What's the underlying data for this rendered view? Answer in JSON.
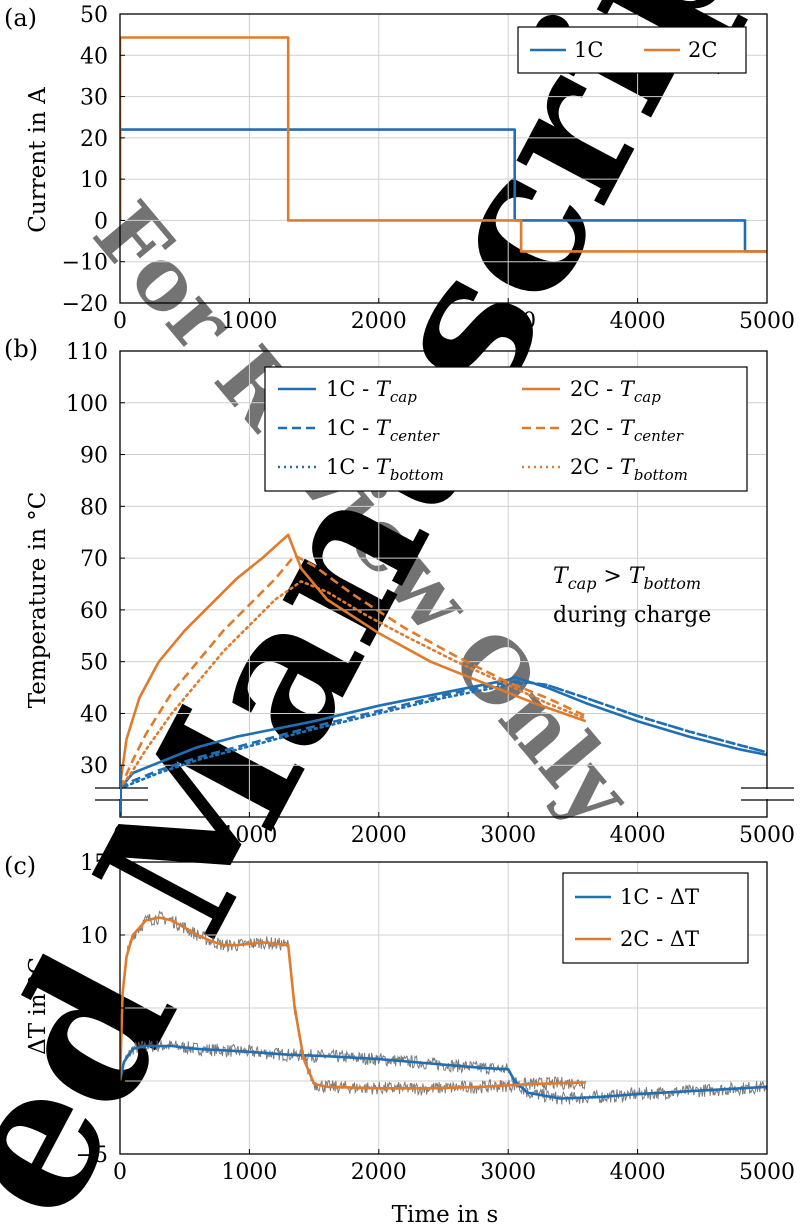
{
  "watermark": {
    "text_a": "For Review Only",
    "text_b": "ed Manuscript",
    "color_a": "#7fd3f5",
    "color_b": "#9a9a9a"
  },
  "colors": {
    "c1": "#1f6fb5",
    "c2": "#e07b2b",
    "noise": "#666666",
    "grid": "#d0d0d0"
  },
  "chart_data": [
    {
      "panel": "(a)",
      "type": "line",
      "xlabel": "",
      "ylabel": "Current in A",
      "xlim": [
        0,
        5000
      ],
      "ylim": [
        -20,
        50
      ],
      "xticks": [
        0,
        1000,
        2000,
        3000,
        4000,
        5000
      ],
      "yticks": [
        -20,
        -10,
        0,
        10,
        20,
        30,
        40,
        50
      ],
      "grid": true,
      "legend_position": "top-right",
      "series": [
        {
          "name": "1C",
          "style": "solid",
          "color": "#1f6fb5",
          "x": [
            0,
            0,
            3050,
            3050,
            4830,
            4830,
            5000
          ],
          "y": [
            0,
            22,
            22,
            0,
            0,
            -7.5,
            -7.5
          ]
        },
        {
          "name": "2C",
          "style": "solid",
          "color": "#e07b2b",
          "x": [
            0,
            0,
            1300,
            1300,
            3100,
            3100,
            5000
          ],
          "y": [
            0,
            44.3,
            44.3,
            0,
            0,
            -7.5,
            -7.5
          ]
        }
      ]
    },
    {
      "panel": "(b)",
      "type": "line",
      "xlabel": "",
      "ylabel": "Temperature in °C",
      "xlim": [
        0,
        5000
      ],
      "ylim": [
        20,
        110
      ],
      "xticks": [
        0,
        1000,
        2000,
        3000,
        4000,
        5000
      ],
      "yticks": [
        30,
        40,
        50,
        60,
        70,
        80,
        90,
        100,
        110
      ],
      "axis_break": true,
      "grid": true,
      "legend_position": "top-right",
      "annotation": {
        "line1_main": "T",
        "line1_sub1": "cap",
        "line1_op": " > T",
        "line1_sub2": "bottom",
        "line2": "during charge"
      },
      "series": [
        {
          "name": "1C - T_cap",
          "label_main": "1C - T",
          "label_sub": "cap",
          "style": "solid",
          "color": "#1f6fb5",
          "x": [
            0,
            100,
            300,
            600,
            900,
            1200,
            1500,
            2000,
            2500,
            3000,
            3050,
            3300,
            3600,
            4000,
            4400,
            4800,
            5000
          ],
          "y": [
            25.5,
            28.5,
            30.5,
            33.5,
            35.5,
            37,
            38.5,
            41.5,
            44,
            46.5,
            47,
            45,
            42,
            38.5,
            35.5,
            33,
            32
          ]
        },
        {
          "name": "1C - T_center",
          "label_main": "1C - T",
          "label_sub": "center",
          "style": "dashed",
          "color": "#1f6fb5",
          "x": [
            0,
            100,
            300,
            600,
            900,
            1200,
            1500,
            2000,
            2500,
            3000,
            3100,
            3300,
            3600,
            4000,
            4400,
            4800,
            5000
          ],
          "y": [
            25.5,
            27,
            29,
            31.5,
            33.5,
            35.5,
            37.5,
            40.5,
            43.5,
            46,
            46.2,
            45.5,
            43,
            39.5,
            36.5,
            33.8,
            32.5
          ]
        },
        {
          "name": "1C - T_bottom",
          "label_main": "1C - T",
          "label_sub": "bottom",
          "style": "dotted",
          "color": "#1f6fb5",
          "x": [
            0,
            100,
            300,
            600,
            900,
            1200,
            1500,
            2000,
            2500,
            3000,
            3150,
            3300,
            3600,
            4000,
            4400,
            4800,
            5000
          ],
          "y": [
            25.5,
            26.5,
            28.5,
            31,
            33,
            35,
            37,
            40,
            43,
            45.5,
            46,
            45.5,
            43,
            39.5,
            36.5,
            33.8,
            32.5
          ]
        },
        {
          "name": "2C - T_cap",
          "label_main": "2C - T",
          "label_sub": "cap",
          "style": "solid",
          "color": "#e07b2b",
          "x": [
            0,
            50,
            150,
            300,
            500,
            700,
            900,
            1100,
            1300,
            1400,
            1600,
            2000,
            2400,
            2800,
            3200,
            3600
          ],
          "y": [
            26,
            35,
            43,
            50,
            56,
            61,
            66,
            70,
            74.5,
            68,
            62,
            55.5,
            50,
            46,
            42,
            38.5
          ]
        },
        {
          "name": "2C - T_center",
          "label_main": "2C - T",
          "label_sub": "center",
          "style": "dashed",
          "color": "#e07b2b",
          "x": [
            0,
            100,
            200,
            400,
            600,
            800,
            1000,
            1200,
            1350,
            1500,
            1800,
            2200,
            2600,
            3000,
            3300,
            3600
          ],
          "y": [
            25.5,
            31,
            36,
            44,
            50,
            56,
            61,
            66,
            70.5,
            68.5,
            63,
            56.5,
            51,
            46,
            43,
            39.5
          ]
        },
        {
          "name": "2C - T_bottom",
          "label_main": "2C - T",
          "label_sub": "bottom",
          "style": "dotted",
          "color": "#e07b2b",
          "x": [
            0,
            100,
            200,
            400,
            600,
            800,
            1000,
            1200,
            1400,
            1600,
            1900,
            2200,
            2600,
            3000,
            3300,
            3600
          ],
          "y": [
            25.5,
            29,
            33,
            40,
            46,
            52,
            57,
            62,
            65.5,
            63.5,
            59,
            55,
            50,
            45.5,
            42,
            39
          ]
        }
      ]
    },
    {
      "panel": "(c)",
      "type": "line",
      "xlabel": "Time in s",
      "ylabel": "ΔT in °C",
      "xlim": [
        0,
        5000
      ],
      "ylim": [
        -5,
        15
      ],
      "xticks": [
        0,
        1000,
        2000,
        3000,
        4000,
        5000
      ],
      "yticks": [
        -5,
        0,
        5,
        10,
        15
      ],
      "grid": true,
      "legend_position": "top-right",
      "series": [
        {
          "name": "1C - ΔT",
          "style": "solid",
          "color": "#1f6fb5",
          "x": [
            0,
            30,
            100,
            200,
            400,
            600,
            800,
            1000,
            1300,
            1600,
            2000,
            2400,
            2800,
            3000,
            3050,
            3150,
            3400,
            3700,
            4000,
            4400,
            4800,
            5000
          ],
          "y": [
            0,
            1.3,
            2.2,
            2.4,
            2.4,
            2.2,
            2.1,
            2.0,
            1.8,
            1.7,
            1.5,
            1.2,
            0.9,
            0.8,
            0.0,
            -0.8,
            -1.2,
            -1.1,
            -0.9,
            -0.7,
            -0.5,
            -0.4
          ]
        },
        {
          "name": "2C - ΔT",
          "style": "solid",
          "color": "#e07b2b",
          "x": [
            0,
            20,
            50,
            100,
            150,
            200,
            300,
            400,
            500,
            600,
            700,
            800,
            900,
            1000,
            1100,
            1200,
            1300,
            1350,
            1420,
            1500,
            1600,
            2000,
            2400,
            2800,
            3200,
            3600
          ],
          "y": [
            0,
            6,
            8.5,
            10,
            10.5,
            11,
            11.2,
            11.0,
            10.5,
            10.0,
            9.6,
            9.3,
            9.3,
            9.4,
            9.5,
            9.4,
            9.3,
            5,
            1.5,
            -0.2,
            -0.4,
            -0.5,
            -0.5,
            -0.4,
            -0.2,
            -0.1
          ]
        }
      ]
    }
  ]
}
